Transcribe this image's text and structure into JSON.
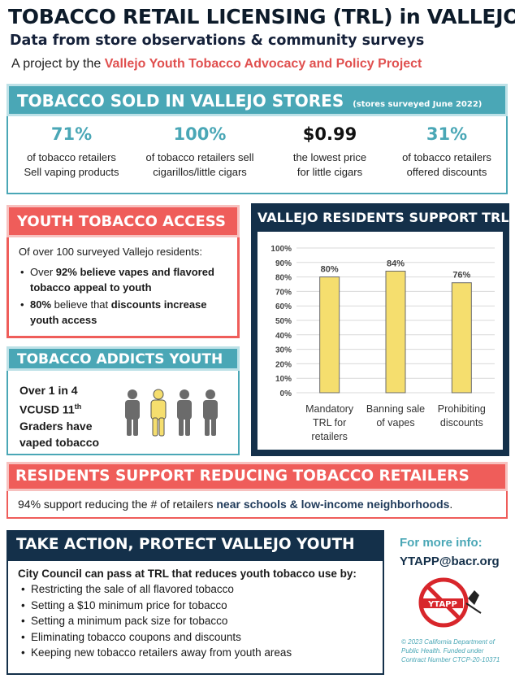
{
  "header": {
    "title": "TOBACCO RETAIL LICENSING (TRL) in VALLEJO",
    "subtitle": "Data from store observations & community surveys",
    "byline_prefix": "A project by the",
    "byline_org": "Vallejo Youth Tobacco Advocacy and Policy Project"
  },
  "sold": {
    "title": "TOBACCO SOLD IN VALLEJO STORES",
    "note": "(stores surveyed June 2022)",
    "stats": [
      {
        "value": "71%",
        "line1": "of tobacco retailers",
        "line2": "Sell vaping products"
      },
      {
        "value": "100%",
        "line1": "of tobacco retailers sell",
        "line2": "cigarillos/little cigars"
      },
      {
        "value": "$0.99",
        "line1": "the lowest price",
        "line2": "for little cigars"
      },
      {
        "value": "31%",
        "line1": "of tobacco retailers",
        "line2": "offered discounts"
      }
    ]
  },
  "youth_access": {
    "title": "YOUTH TOBACCO ACCESS",
    "intro": "Of over 100 surveyed Vallejo residents:",
    "b1_pre": "Over ",
    "b1_num": "92%",
    "b1_post": " believe vapes and flavored tobacco appeal to youth",
    "b2_num": "80%",
    "b2_mid": " believe that ",
    "b2_post": "discounts increase youth access"
  },
  "addicts": {
    "title": "TOBACCO ADDICTS YOUTH",
    "line1": "Over 1 in 4",
    "line2": "VCUSD 11",
    "line2_sup": "th",
    "line3": "Graders  have",
    "line4": "vaped tobacco",
    "colors": {
      "gray": "#6b6b6b",
      "highlight": "#f5de6e"
    }
  },
  "support": {
    "title": "VALLEJO RESIDENTS SUPPORT TRLs"
  },
  "chart_data": {
    "type": "bar",
    "title": "VALLEJO RESIDENTS SUPPORT TRLs",
    "categories": [
      [
        "Mandatory",
        "TRL for",
        "retailers"
      ],
      [
        "Banning sale",
        "of vapes"
      ],
      [
        "Prohibiting",
        "discounts"
      ]
    ],
    "values": [
      80,
      84,
      76
    ],
    "value_labels": [
      "80%",
      "84%",
      "76%"
    ],
    "ylim": [
      0,
      100
    ],
    "yticks": [
      "0%",
      "10%",
      "20%",
      "30%",
      "40%",
      "50%",
      "60%",
      "70%",
      "80%",
      "90%",
      "100%"
    ],
    "grid": true,
    "bar_color": "#f5de6e"
  },
  "reduce": {
    "title": "RESIDENTS SUPPORT REDUCING TOBACCO RETAILERS",
    "text_pre": "94% support reducing the # of retailers ",
    "text_hl": "near schools & low-income neighborhoods",
    "text_post": "."
  },
  "action": {
    "title": "TAKE ACTION, PROTECT VALLEJO YOUTH",
    "lead": "City Council can pass at TRL that reduces youth tobacco use by:",
    "items": [
      "Restricting the sale of all flavored tobacco",
      "Setting a $10 minimum price for tobacco",
      "Setting a minimum pack size for tobacco",
      "Eliminating  tobacco coupons and discounts",
      "Keeping new tobacco retailers away from youth areas"
    ]
  },
  "info": {
    "title": "For more info:",
    "email": "YTAPP@bacr.org",
    "logo_text": "YTAPP",
    "funding_1": "© 2023 California Department of",
    "funding_2": "Public Health. Funded under",
    "funding_3": "Contract Number CTCP-20-10371"
  },
  "colors": {
    "teal": "#4aa7b6",
    "coral": "#ef5d5a",
    "navy": "#14304a"
  }
}
